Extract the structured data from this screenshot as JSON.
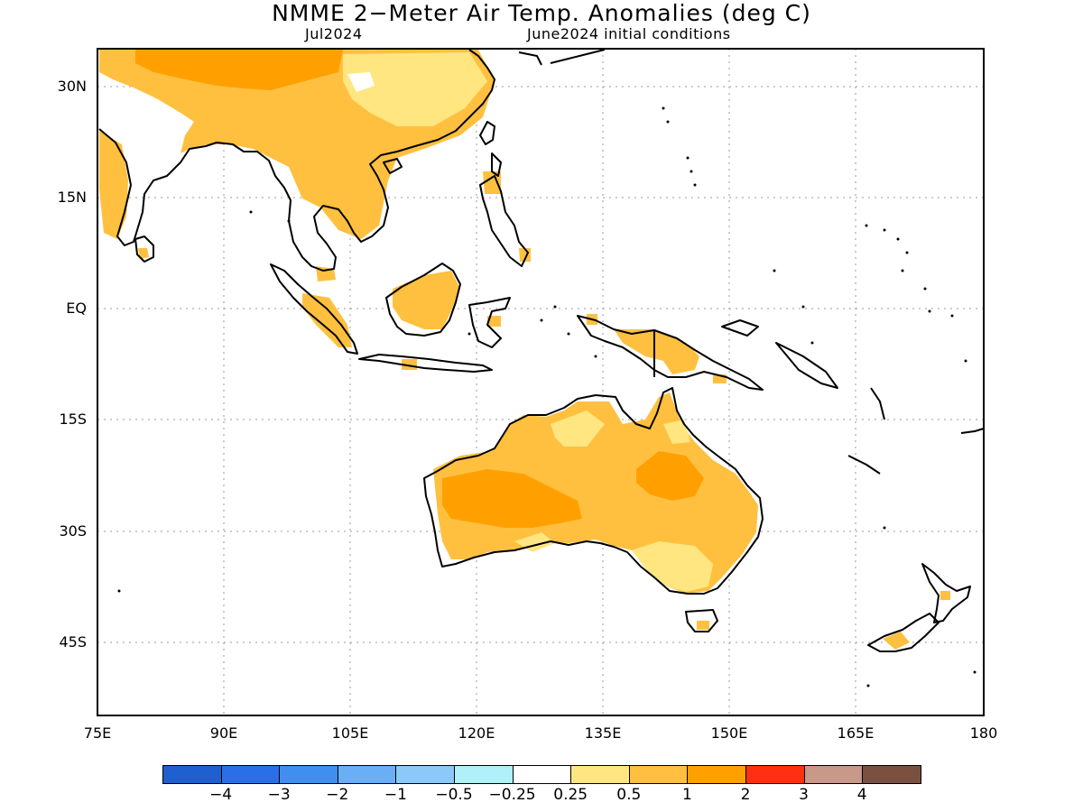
{
  "title": "NMME 2−Meter Air Temp. Anomalies (deg C)",
  "valid_month": "Jul2024",
  "initial_conditions": "June2024 initial conditions",
  "lat_labels": [
    "30N",
    "15N",
    "EQ",
    "15S",
    "30S",
    "45S"
  ],
  "lon_labels": [
    "75E",
    "90E",
    "105E",
    "120E",
    "135E",
    "150E",
    "165E",
    "180"
  ],
  "colorbar": {
    "colors": [
      "#1f5fcf",
      "#2a6fe8",
      "#3f8ef0",
      "#6aaef5",
      "#8cc8f8",
      "#b0f0f8",
      "#ffffff",
      "#ffe680",
      "#ffc040",
      "#ffa000",
      "#ff3010",
      "#c89888",
      "#7a5040"
    ],
    "labels": [
      "−4",
      "−3",
      "−2",
      "−1",
      "−0.5",
      "−0.25",
      "0.25",
      "0.5",
      "1",
      "2",
      "3",
      "4"
    ]
  }
}
